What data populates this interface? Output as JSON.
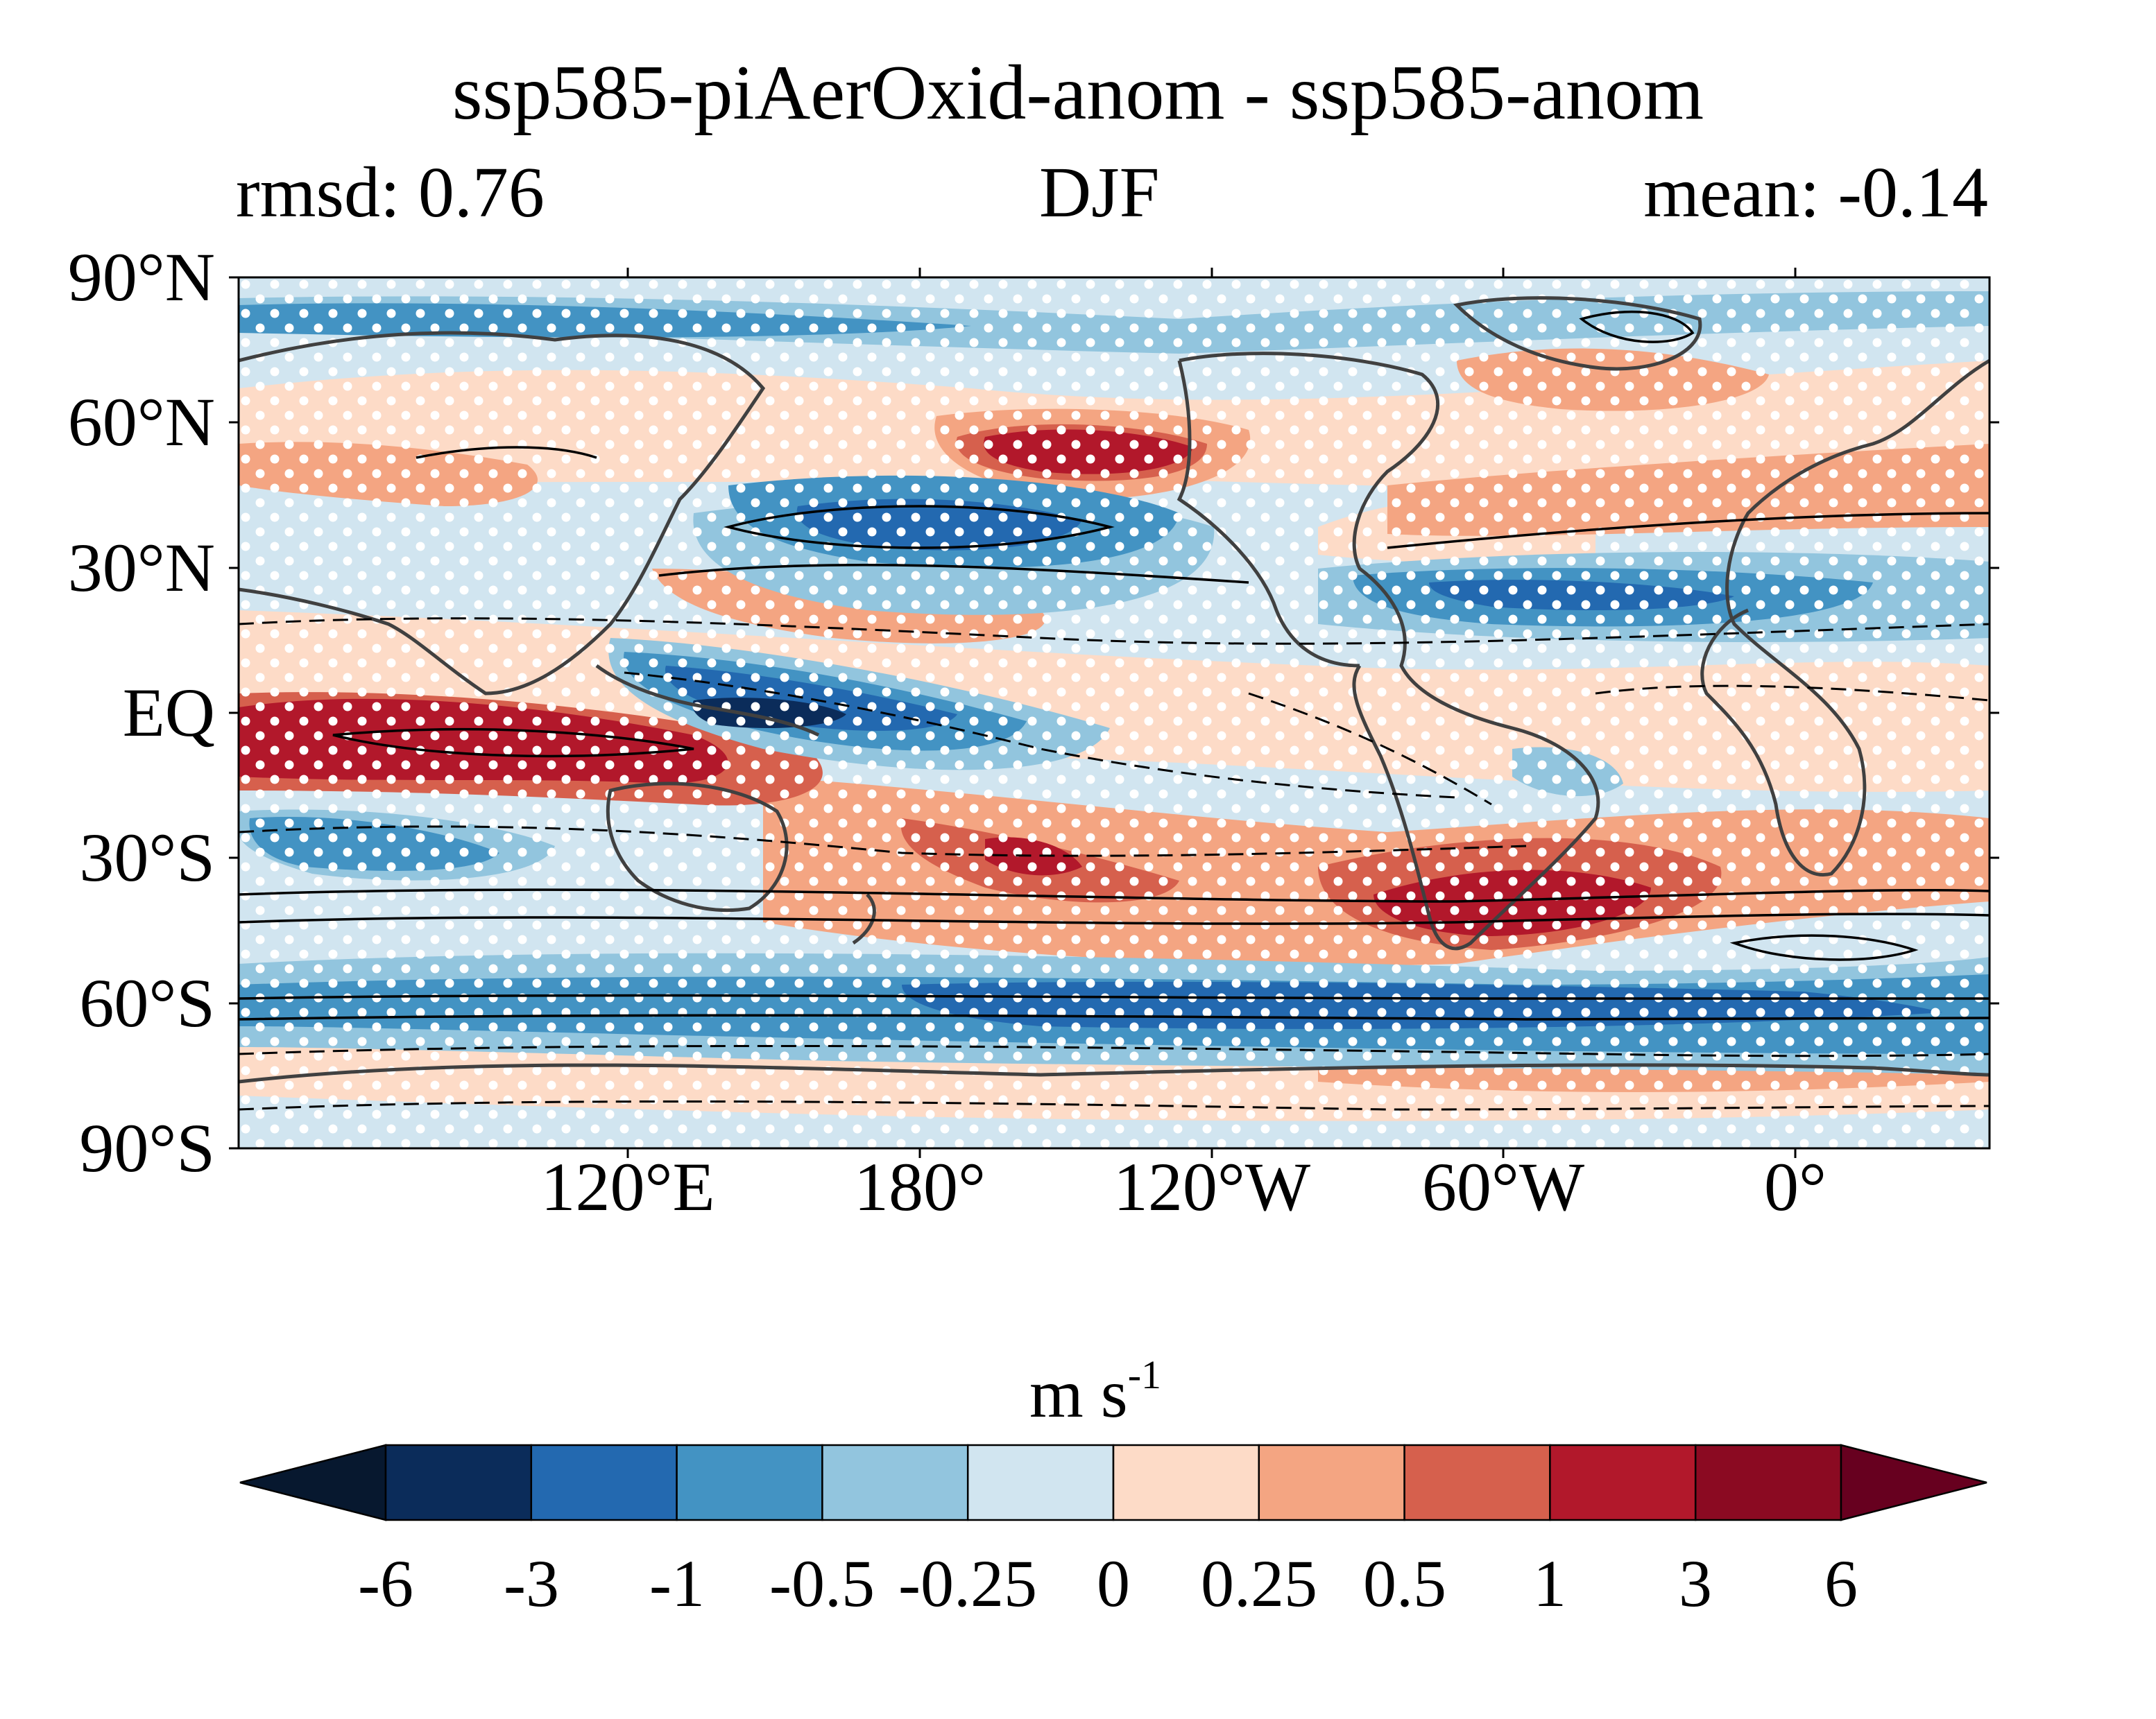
{
  "title": "ssp585-piAerOxid-anom - ssp585-anom",
  "subtitle_left": "rmsd: 0.76",
  "subtitle_center": "DJF",
  "subtitle_right": "mean: -0.14",
  "map": {
    "projection": "equirectangular",
    "lon_range": [
      30,
      390
    ],
    "lat_range": [
      -90,
      90
    ],
    "lat_ticks": [
      "90°N",
      "60°N",
      "30°N",
      "EQ",
      "30°S",
      "60°S",
      "90°S"
    ],
    "lon_ticks": [
      "120°E",
      "180°",
      "120°W",
      "60°W",
      "0°"
    ],
    "stippling": "white dots mark regions of significance",
    "contours": "black solid (positive) and dashed (negative) lines",
    "coastlines_color": "#404040"
  },
  "colorbar": {
    "title": "m s",
    "title_exponent": "-1",
    "levels": [
      "-6",
      "-3",
      "-1",
      "-0.5",
      "-0.25",
      "0",
      "0.25",
      "0.5",
      "1",
      "3",
      "6"
    ],
    "colors": [
      "#0b2c5a",
      "#2369b0",
      "#4393c3",
      "#92c5de",
      "#d1e5f0",
      "#fddbc7",
      "#f4a582",
      "#d6604d",
      "#b2182b",
      "#8b0a22"
    ],
    "under_color": "#07182f",
    "over_color": "#67001f",
    "extend": "both"
  }
}
